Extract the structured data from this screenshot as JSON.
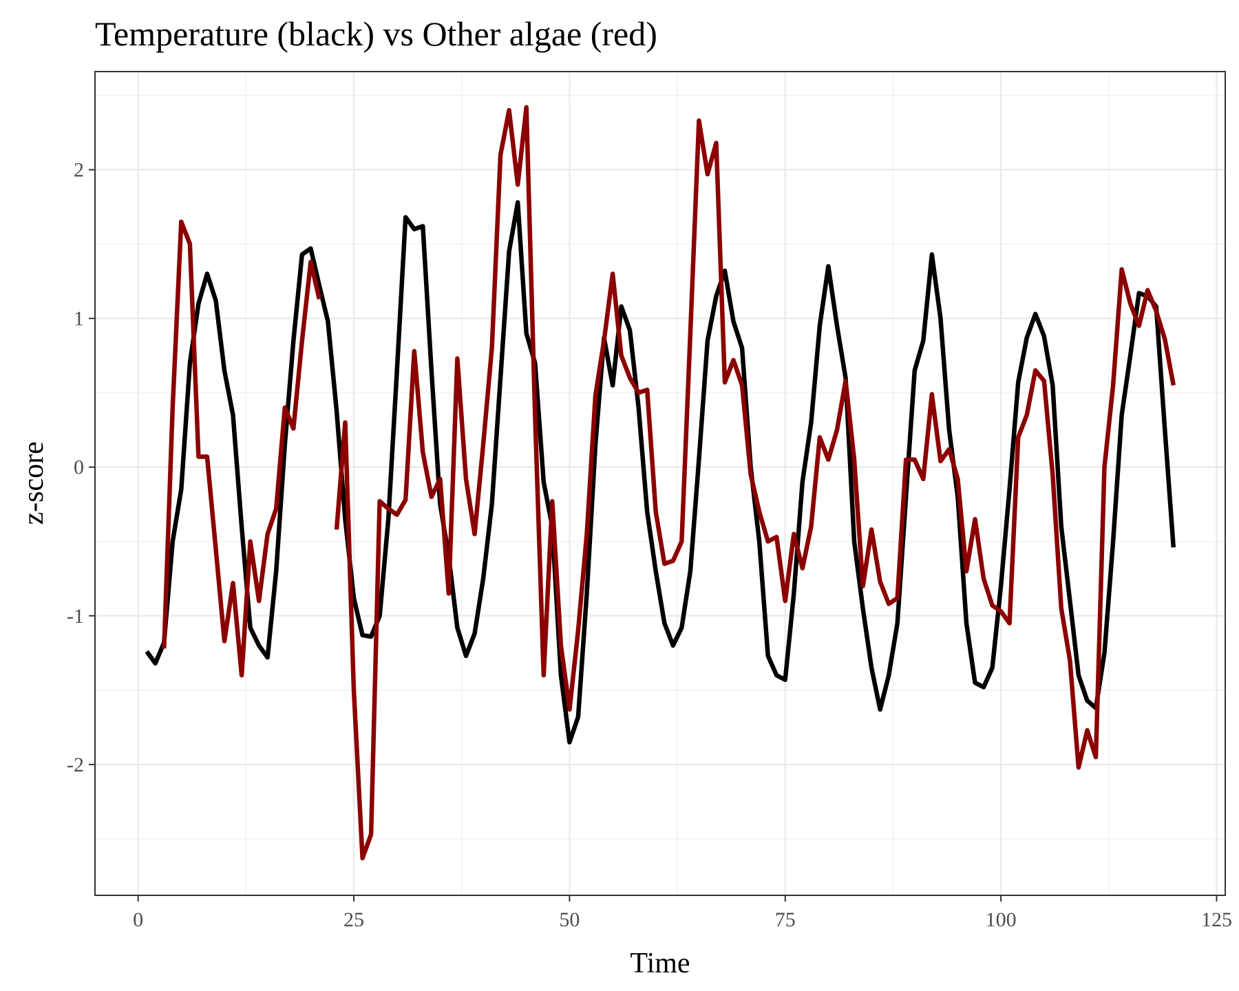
{
  "chart_data": {
    "type": "line",
    "title": "Temperature (black) vs Other algae (red)",
    "xlabel": "Time",
    "ylabel": "z-score",
    "xlim": [
      -5,
      126
    ],
    "ylim": [
      -2.88,
      2.66
    ],
    "x_ticks": [
      0,
      25,
      50,
      75,
      100,
      125
    ],
    "y_ticks": [
      -2,
      -1,
      0,
      1,
      2
    ],
    "x_tick_labels": [
      "0",
      "25",
      "50",
      "75",
      "100",
      "125"
    ],
    "y_tick_labels": [
      "-2",
      "-1",
      "0",
      "1",
      "2"
    ],
    "grid": true,
    "legend": "none",
    "series": [
      {
        "color": "#000000",
        "x": [
          1,
          2,
          3,
          4,
          5,
          6,
          7,
          8,
          9,
          10,
          11,
          12,
          13,
          14,
          15,
          16,
          17,
          18,
          19,
          20,
          21,
          22,
          23,
          24,
          25,
          26,
          27,
          28,
          29,
          30,
          31,
          32,
          33,
          34,
          35,
          36,
          37,
          38,
          39,
          40,
          41,
          42,
          43,
          44,
          45,
          46,
          47,
          48,
          49,
          50,
          51,
          52,
          53,
          54,
          55,
          56,
          57,
          58,
          59,
          60,
          61,
          62,
          63,
          64,
          65,
          66,
          67,
          68,
          69,
          70,
          71,
          72,
          73,
          74,
          75,
          76,
          77,
          78,
          79,
          80,
          81,
          82,
          83,
          84,
          85,
          86,
          87,
          88,
          89,
          90,
          91,
          92,
          93,
          94,
          95,
          96,
          97,
          98,
          99,
          100,
          101,
          102,
          103,
          104,
          105,
          106,
          107,
          108,
          109,
          110,
          111,
          112,
          113,
          114,
          115,
          116,
          117,
          118,
          119,
          120
        ],
        "values": [
          -1.24,
          -1.32,
          -1.18,
          -0.5,
          -0.15,
          0.7,
          1.1,
          1.3,
          1.12,
          0.65,
          0.35,
          -0.4,
          -1.08,
          -1.2,
          -1.28,
          -0.7,
          0.15,
          0.85,
          1.43,
          1.47,
          1.22,
          0.98,
          0.38,
          -0.35,
          -0.88,
          -1.13,
          -1.14,
          -1.0,
          -0.35,
          0.65,
          1.68,
          1.6,
          1.62,
          0.65,
          -0.25,
          -0.6,
          -1.08,
          -1.27,
          -1.12,
          -0.75,
          -0.25,
          0.6,
          1.45,
          1.78,
          0.9,
          0.7,
          -0.1,
          -0.4,
          -1.4,
          -1.85,
          -1.68,
          -0.85,
          0.15,
          0.87,
          0.55,
          1.08,
          0.92,
          0.4,
          -0.3,
          -0.7,
          -1.05,
          -1.2,
          -1.08,
          -0.7,
          0.05,
          0.85,
          1.15,
          1.32,
          0.98,
          0.8,
          0.0,
          -0.5,
          -1.27,
          -1.4,
          -1.43,
          -0.85,
          -0.1,
          0.3,
          0.95,
          1.35,
          0.95,
          0.6,
          -0.5,
          -0.95,
          -1.35,
          -1.63,
          -1.4,
          -1.05,
          -0.2,
          0.65,
          0.85,
          1.43,
          1.0,
          0.25,
          -0.2,
          -1.05,
          -1.45,
          -1.48,
          -1.35,
          -0.8,
          -0.15,
          0.57,
          0.87,
          1.03,
          0.88,
          0.55,
          -0.4,
          -0.9,
          -1.4,
          -1.57,
          -1.62,
          -1.25,
          -0.5,
          0.35,
          0.75,
          1.17,
          1.15,
          1.08,
          0.25,
          -0.54
        ]
      },
      {
        "color": "#8b0000",
        "x": [
          3,
          4,
          5,
          6,
          7,
          8,
          9,
          10,
          11,
          12,
          13,
          14,
          15,
          16,
          17,
          18,
          19,
          20,
          21,
          null,
          23,
          24,
          25,
          26,
          27,
          28,
          29,
          30,
          31,
          32,
          33,
          34,
          35,
          36,
          37,
          38,
          39,
          40,
          41,
          42,
          43,
          44,
          45,
          46,
          47,
          48,
          49,
          50,
          51,
          52,
          53,
          54,
          55,
          56,
          57,
          58,
          59,
          60,
          61,
          62,
          63,
          64,
          65,
          66,
          67,
          68,
          69,
          70,
          71,
          72,
          73,
          74,
          75,
          76,
          77,
          78,
          79,
          80,
          81,
          82,
          83,
          84,
          85,
          86,
          87,
          88,
          89,
          90,
          91,
          92,
          93,
          94,
          95,
          96,
          97,
          98,
          99,
          100,
          101,
          102,
          103,
          104,
          105,
          106,
          107,
          108,
          109,
          110,
          111,
          112,
          113,
          114,
          115,
          116,
          117,
          118,
          119,
          120
        ],
        "values": [
          -1.22,
          0.4,
          1.65,
          1.5,
          0.07,
          0.07,
          -0.55,
          -1.17,
          -0.78,
          -1.4,
          -0.5,
          -0.9,
          -0.45,
          -0.28,
          0.4,
          0.26,
          0.85,
          1.38,
          1.13,
          null,
          -0.42,
          0.3,
          -1.5,
          -2.63,
          -2.47,
          -0.23,
          -0.28,
          -0.32,
          -0.22,
          0.78,
          0.1,
          -0.2,
          -0.08,
          -0.85,
          0.73,
          -0.08,
          -0.45,
          0.15,
          0.8,
          2.1,
          2.4,
          1.9,
          2.42,
          0.35,
          -1.4,
          -0.23,
          -1.2,
          -1.63,
          -1.1,
          -0.45,
          0.48,
          0.85,
          1.3,
          0.75,
          0.6,
          0.5,
          0.52,
          -0.3,
          -0.65,
          -0.63,
          -0.5,
          0.9,
          2.33,
          1.97,
          2.18,
          0.57,
          0.72,
          0.55,
          -0.05,
          -0.3,
          -0.5,
          -0.47,
          -0.9,
          -0.45,
          -0.68,
          -0.4,
          0.2,
          0.05,
          0.25,
          0.58,
          0.05,
          -0.8,
          -0.42,
          -0.77,
          -0.92,
          -0.88,
          0.05,
          0.05,
          -0.08,
          0.49,
          0.04,
          0.12,
          -0.08,
          -0.7,
          -0.35,
          -0.75,
          -0.93,
          -0.97,
          -1.05,
          0.2,
          0.35,
          0.65,
          0.58,
          -0.05,
          -0.95,
          -1.3,
          -2.02,
          -1.77,
          -1.95,
          0.0,
          0.55,
          1.33,
          1.1,
          0.95,
          1.19,
          1.05,
          0.86,
          0.55
        ]
      }
    ]
  }
}
